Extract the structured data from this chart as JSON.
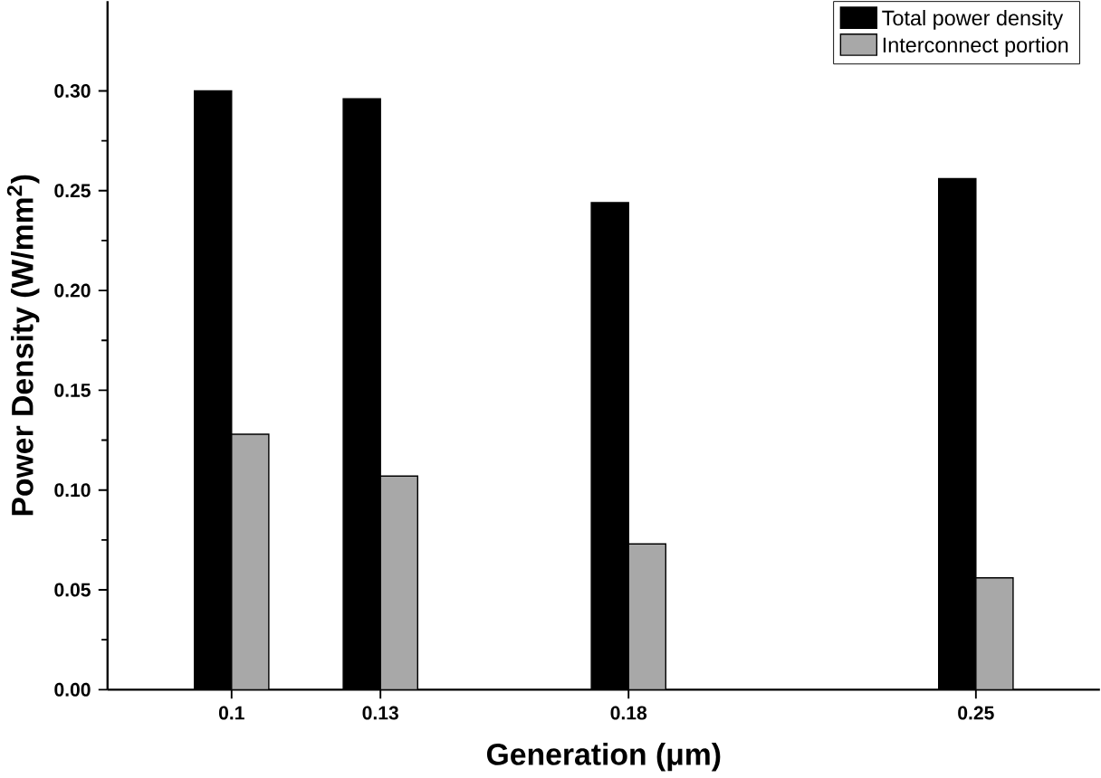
{
  "chart_data": {
    "type": "bar",
    "xlabel": "Generation (μm)",
    "ylabel": "Power Density (W/mm$^{2}$)",
    "x": [
      0.1,
      0.13,
      0.18,
      0.25
    ],
    "series": [
      {
        "name": "Total power density",
        "color": "#000000",
        "values": [
          0.3,
          0.296,
          0.244,
          0.256
        ]
      },
      {
        "name": "Interconnect portion",
        "color": "#a8a8a8",
        "values": [
          0.128,
          0.107,
          0.073,
          0.056
        ]
      }
    ],
    "xlim": [
      0.075,
      0.275
    ],
    "xticks": [
      0.1,
      0.13,
      0.18,
      0.25
    ],
    "ylim": [
      0,
      0.345
    ],
    "yticks": [
      {
        "value": 0.0,
        "label": "0.00"
      },
      {
        "value": 0.05,
        "label": "0.05"
      },
      {
        "value": 0.1,
        "label": "0.10"
      },
      {
        "value": 0.15,
        "label": "0.15"
      },
      {
        "value": 0.2,
        "label": "0.20"
      },
      {
        "value": 0.25,
        "label": "0.25"
      },
      {
        "value": 0.3,
        "label": "0.30"
      }
    ],
    "legend": "top right",
    "grid": false
  }
}
